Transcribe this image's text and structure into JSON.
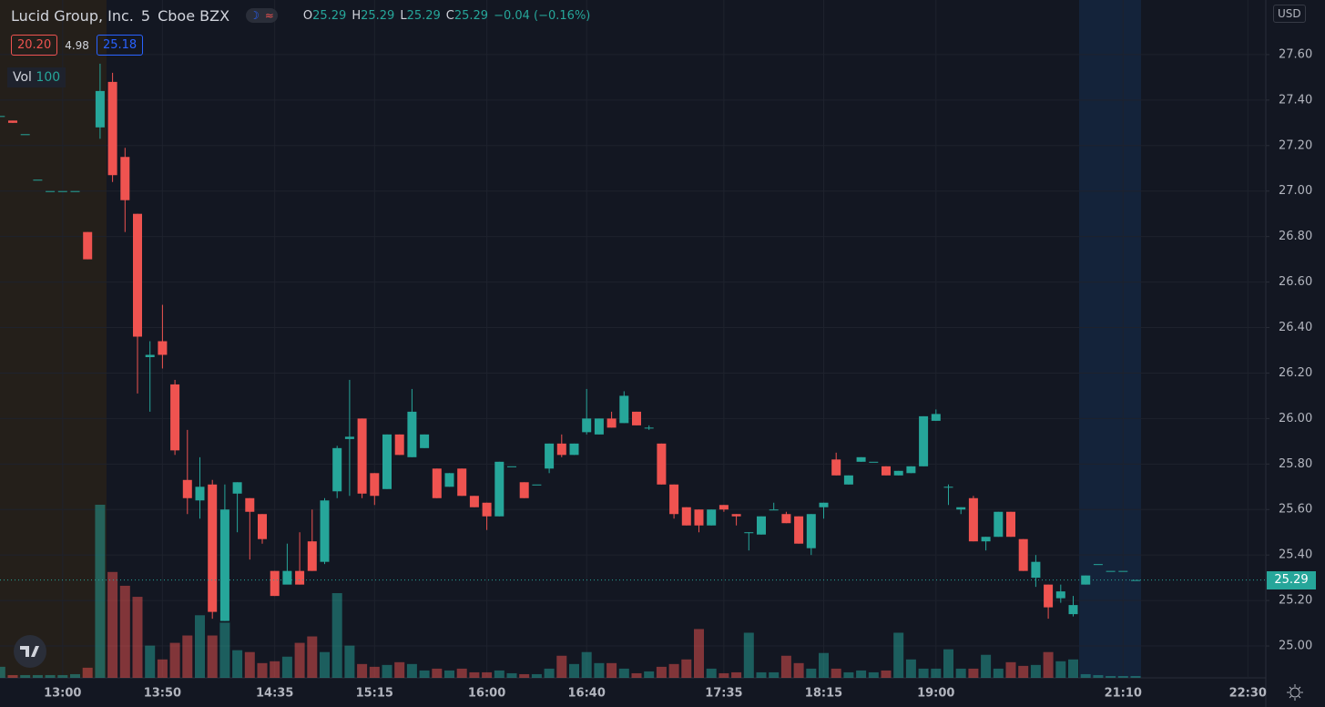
{
  "chart_data": {
    "type": "candlestick",
    "title": "Lucid Group, Inc.",
    "interval": "5",
    "exchange": "Cboe BZX",
    "legend": [
      {
        "key": "O",
        "value": 25.29
      },
      {
        "key": "H",
        "value": 25.29
      },
      {
        "key": "L",
        "value": 25.29
      },
      {
        "key": "C",
        "value": 25.29
      }
    ],
    "change": "−0.04 (−0.16%)",
    "badges": [
      {
        "value": 20.2,
        "label": "20.20"
      },
      4.98,
      25.18
    ],
    "volume_label": "Vol",
    "volume_length": 100,
    "currency": "USD",
    "last_price": {
      "value": 25.29,
      "label": "25.29"
    },
    "up_color": "#26a69a",
    "down_color": "#ef5350",
    "ylim": [
      24.86,
      27.84
    ],
    "yticks": [
      {
        "value": 25.0,
        "label": "25.00"
      },
      {
        "value": 25.2,
        "label": "25.20"
      },
      {
        "value": 25.4,
        "label": "25.40"
      },
      {
        "value": 25.6,
        "label": "25.60"
      },
      {
        "value": 25.8,
        "label": "25.80"
      },
      {
        "value": 26.0,
        "label": "26.00"
      },
      {
        "value": 26.2,
        "label": "26.20"
      },
      {
        "value": 26.4,
        "label": "26.40"
      },
      {
        "value": 26.6,
        "label": "26.60"
      },
      {
        "value": 26.8,
        "label": "26.80"
      },
      {
        "value": 27.0,
        "label": "27.00"
      },
      {
        "value": 27.2,
        "label": "27.20"
      },
      {
        "value": 27.4,
        "label": "27.40"
      },
      {
        "value": 27.6,
        "label": "27.60"
      }
    ],
    "grid": true,
    "categories": [
      null,
      null,
      null,
      null,
      null,
      "13:00",
      null,
      null,
      null,
      null,
      null,
      null,
      null,
      "13:50",
      null,
      null,
      null,
      null,
      null,
      null,
      null,
      null,
      "14:35",
      null,
      null,
      null,
      null,
      null,
      null,
      null,
      "15:15",
      null,
      null,
      null,
      null,
      null,
      null,
      null,
      null,
      "16:00",
      null,
      null,
      null,
      null,
      null,
      null,
      null,
      "16:40",
      null,
      null,
      null,
      null,
      null,
      null,
      null,
      null,
      null,
      null,
      "17:35",
      null,
      null,
      null,
      null,
      null,
      null,
      null,
      "18:15",
      null,
      null,
      null,
      null,
      null,
      null,
      null,
      null,
      "19:00",
      null,
      null,
      null,
      null,
      null,
      null,
      null,
      null,
      null,
      null,
      null,
      null,
      null,
      null,
      "21:10",
      null,
      null,
      null,
      null,
      null,
      null,
      null,
      null,
      null,
      "22:30"
    ],
    "open": [
      27.33,
      27.31,
      27.25,
      27.05,
      27.0,
      27.0,
      27.0,
      26.82,
      27.28,
      27.48,
      27.15,
      26.9,
      26.27,
      26.34,
      26.15,
      25.73,
      25.64,
      25.71,
      25.11,
      25.67,
      25.65,
      25.58,
      25.33,
      25.27,
      25.33,
      25.46,
      25.37,
      25.68,
      25.91,
      26.0,
      25.76,
      25.69,
      25.93,
      25.83,
      25.87,
      25.78,
      25.7,
      25.78,
      25.66,
      25.63,
      25.57,
      25.79,
      25.72,
      25.71,
      25.78,
      25.89,
      25.84,
      25.94,
      25.93,
      26.0,
      25.98,
      26.03,
      25.96,
      25.89,
      25.71,
      25.61,
      25.6,
      25.53,
      25.62,
      25.58,
      25.5,
      25.49,
      25.6,
      25.58,
      25.57,
      25.43,
      25.61,
      25.82,
      25.71,
      25.81,
      25.81,
      25.79,
      25.75,
      25.76,
      25.79,
      25.99,
      25.7,
      25.6,
      25.65,
      25.46,
      25.48,
      25.59,
      25.47,
      25.3,
      25.27,
      25.21,
      25.14,
      25.27,
      25.36,
      25.33,
      25.33,
      25.29,
      null,
      null,
      null,
      null,
      null,
      null,
      null,
      null,
      null
    ],
    "high": [
      27.33,
      27.31,
      27.25,
      27.05,
      27.0,
      27.0,
      27.0,
      26.82,
      27.56,
      27.52,
      27.19,
      26.9,
      26.34,
      26.5,
      26.17,
      25.95,
      25.83,
      25.73,
      25.71,
      25.72,
      25.65,
      25.58,
      25.33,
      25.45,
      25.5,
      25.6,
      25.65,
      25.88,
      26.17,
      26.0,
      25.76,
      25.93,
      25.93,
      26.13,
      25.93,
      25.78,
      25.76,
      25.78,
      25.66,
      25.63,
      25.81,
      25.79,
      25.72,
      25.71,
      25.89,
      25.93,
      25.89,
      26.13,
      26.0,
      26.03,
      26.12,
      26.03,
      25.97,
      25.89,
      25.71,
      25.61,
      25.6,
      25.6,
      25.62,
      25.58,
      25.5,
      25.57,
      25.63,
      25.59,
      25.57,
      25.58,
      25.63,
      25.85,
      25.75,
      25.83,
      25.81,
      25.79,
      25.77,
      25.79,
      26.01,
      26.04,
      25.71,
      25.61,
      25.66,
      25.48,
      25.59,
      25.59,
      25.47,
      25.4,
      25.27,
      25.27,
      25.22,
      25.31,
      25.36,
      25.33,
      25.33,
      25.29,
      null,
      null,
      null,
      null,
      null,
      null,
      null,
      null,
      null
    ],
    "low": [
      27.33,
      27.3,
      27.25,
      27.05,
      27.0,
      27.0,
      27.0,
      26.7,
      27.23,
      27.04,
      26.82,
      26.11,
      26.03,
      26.22,
      25.84,
      25.58,
      25.56,
      25.12,
      25.11,
      25.5,
      25.38,
      25.45,
      25.22,
      25.29,
      25.27,
      25.33,
      25.36,
      25.65,
      25.66,
      25.65,
      25.62,
      25.69,
      25.84,
      25.83,
      25.87,
      25.65,
      25.7,
      25.66,
      25.61,
      25.51,
      25.57,
      25.79,
      25.65,
      25.71,
      25.76,
      25.83,
      25.84,
      25.93,
      25.93,
      25.96,
      25.98,
      25.97,
      25.95,
      25.71,
      25.56,
      25.53,
      25.5,
      25.53,
      25.59,
      25.53,
      25.42,
      25.49,
      25.6,
      25.54,
      25.45,
      25.4,
      25.56,
      25.75,
      25.71,
      25.81,
      25.81,
      25.75,
      25.75,
      25.76,
      25.79,
      25.99,
      25.62,
      25.58,
      25.46,
      25.42,
      25.48,
      25.48,
      25.33,
      25.26,
      25.12,
      25.19,
      25.13,
      25.27,
      25.36,
      25.33,
      25.33,
      25.29,
      null,
      null,
      null,
      null,
      null,
      null,
      null,
      null,
      null
    ],
    "close": [
      27.33,
      27.3,
      27.25,
      27.05,
      27.0,
      27.0,
      27.0,
      26.7,
      27.44,
      27.07,
      26.96,
      26.36,
      26.28,
      26.28,
      25.86,
      25.65,
      25.7,
      25.15,
      25.6,
      25.72,
      25.59,
      25.47,
      25.22,
      25.33,
      25.27,
      25.33,
      25.64,
      25.87,
      25.92,
      25.67,
      25.66,
      25.93,
      25.84,
      26.03,
      25.93,
      25.65,
      25.76,
      25.66,
      25.61,
      25.57,
      25.81,
      25.79,
      25.65,
      25.71,
      25.89,
      25.84,
      25.89,
      26.0,
      26.0,
      25.96,
      26.1,
      25.97,
      25.96,
      25.71,
      25.58,
      25.53,
      25.53,
      25.6,
      25.6,
      25.57,
      25.5,
      25.57,
      25.6,
      25.54,
      25.45,
      25.58,
      25.63,
      25.75,
      25.75,
      25.83,
      25.81,
      25.75,
      25.77,
      25.79,
      26.01,
      26.02,
      25.7,
      25.61,
      25.46,
      25.48,
      25.59,
      25.48,
      25.33,
      25.37,
      25.17,
      25.24,
      25.18,
      25.31,
      25.36,
      25.33,
      25.33,
      25.29,
      null,
      null,
      null,
      null,
      null,
      null,
      null,
      null,
      null
    ],
    "volume": [
      12,
      3,
      3,
      3,
      3,
      3,
      4,
      11,
      188,
      115,
      100,
      88,
      35,
      20,
      38,
      46,
      68,
      46,
      60,
      30,
      28,
      16,
      18,
      23,
      38,
      45,
      28,
      92,
      35,
      15,
      12,
      14,
      17,
      15,
      8,
      10,
      8,
      10,
      6,
      6,
      8,
      5,
      4,
      4,
      10,
      24,
      15,
      28,
      16,
      16,
      10,
      5,
      7,
      12,
      15,
      20,
      53,
      10,
      5,
      6,
      49,
      6,
      6,
      24,
      16,
      10,
      27,
      10,
      6,
      8,
      6,
      8,
      49,
      20,
      10,
      10,
      31,
      10,
      10,
      25,
      10,
      17,
      13,
      14,
      28,
      18,
      20,
      4,
      3,
      2,
      2,
      2,
      null,
      null,
      null,
      null,
      null,
      null,
      null,
      null,
      null
    ]
  }
}
